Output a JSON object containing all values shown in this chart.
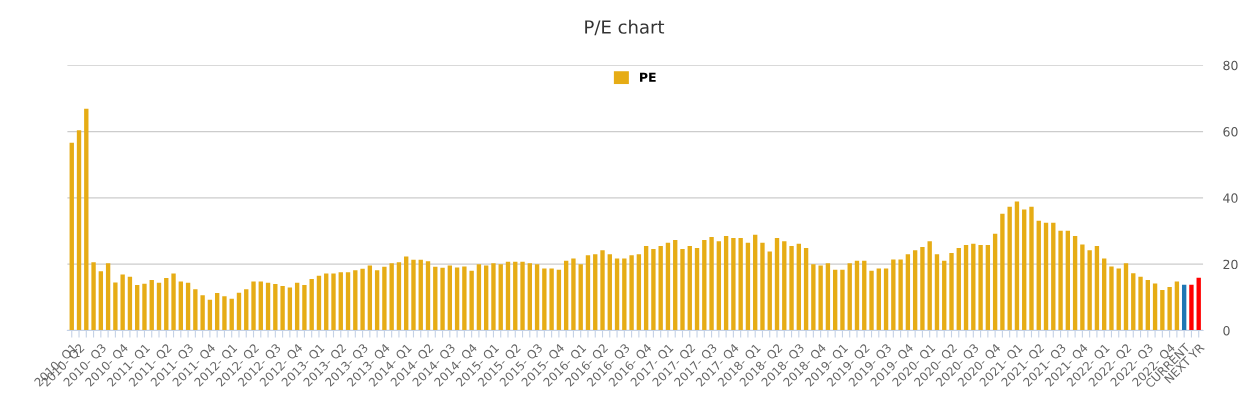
{
  "chart_data": {
    "type": "bar",
    "title": "P/E chart",
    "categories": [
      "2010- Q1",
      "2010- Q2",
      null,
      null,
      "2010- Q3",
      null,
      null,
      "2010- Q4",
      null,
      null,
      "2011- Q1",
      null,
      null,
      "2011- Q2",
      null,
      null,
      "2011- Q3",
      null,
      null,
      "2011- Q4",
      null,
      null,
      "2012- Q1",
      null,
      null,
      "2012- Q2",
      null,
      null,
      "2012- Q3",
      null,
      null,
      "2012- Q4",
      null,
      null,
      "2013- Q1",
      null,
      null,
      "2013- Q2",
      null,
      null,
      "2013- Q3",
      null,
      null,
      "2013- Q4",
      null,
      null,
      "2014- Q1",
      null,
      null,
      "2014- Q2",
      null,
      null,
      "2014- Q3",
      null,
      null,
      "2014- Q4",
      null,
      null,
      "2015- Q1",
      null,
      null,
      "2015- Q2",
      null,
      null,
      "2015- Q3",
      null,
      null,
      "2015- Q4",
      null,
      null,
      "2016- Q1",
      null,
      null,
      "2016- Q2",
      null,
      null,
      "2016- Q3",
      null,
      null,
      "2016- Q4",
      null,
      null,
      "2017- Q1",
      null,
      null,
      "2017- Q2",
      null,
      null,
      "2017- Q3",
      null,
      null,
      "2017- Q4",
      null,
      null,
      "2018- Q1",
      null,
      null,
      "2018- Q2",
      null,
      null,
      "2018- Q3",
      null,
      null,
      "2018- Q4",
      null,
      null,
      "2019- Q1",
      null,
      null,
      "2019- Q2",
      null,
      null,
      "2019- Q3",
      null,
      null,
      "2019- Q4",
      null,
      null,
      "2020- Q1",
      null,
      null,
      "2020- Q2",
      null,
      null,
      "2020- Q3",
      null,
      null,
      "2020- Q4",
      null,
      null,
      "2021- Q1",
      null,
      null,
      "2021- Q2",
      null,
      null,
      "2021- Q3",
      null,
      null,
      "2021- Q4",
      null,
      null,
      "2022- Q1",
      null,
      null,
      "2022- Q2",
      null,
      null,
      "2022- Q3",
      null,
      null,
      "2022- Q4",
      null,
      "CURRENT",
      null,
      "NEXT YR"
    ],
    "series": [
      {
        "name": "PE",
        "color": "#e6ac15",
        "values": [
          56.6,
          60.4,
          66.9,
          20.6,
          17.9,
          20.3,
          14.5,
          16.9,
          16.2,
          13.7,
          14.1,
          15.2,
          14.4,
          15.8,
          17.2,
          14.8,
          14.4,
          12.4,
          10.6,
          9.3,
          11.3,
          10.3,
          9.6,
          11.4,
          12.4,
          14.8,
          14.8,
          14.4,
          14.0,
          13.4,
          13.0,
          14.4,
          13.7,
          15.5,
          16.5,
          17.2,
          17.2,
          17.6,
          17.6,
          18.2,
          18.6,
          19.6,
          18.2,
          19.2,
          20.3,
          20.6,
          22.3,
          21.3,
          21.3,
          20.9,
          19.2,
          18.9,
          19.6,
          19.0,
          19.3,
          18.0,
          20.0,
          19.6,
          20.3,
          20.0,
          20.7,
          20.7,
          20.7,
          20.3,
          20.0,
          18.7,
          18.7,
          18.3,
          21.0,
          21.7,
          20.0,
          22.7,
          23.0,
          24.2,
          23.0,
          21.7,
          21.7,
          22.7,
          23.0,
          25.5,
          24.6,
          25.5,
          26.5,
          27.3,
          24.6,
          25.5,
          24.9,
          27.3,
          28.2,
          26.9,
          28.5,
          27.9,
          27.9,
          26.5,
          28.9,
          26.5,
          23.8,
          27.9,
          26.9,
          25.5,
          26.2,
          24.9,
          20.0,
          19.6,
          20.3,
          18.3,
          18.3,
          20.3,
          21.0,
          21.0,
          18.0,
          18.7,
          18.7,
          21.4,
          21.4,
          23.0,
          24.2,
          25.2,
          26.9,
          23.0,
          21.0,
          23.4,
          24.9,
          25.8,
          26.2,
          25.8,
          25.8,
          29.2,
          35.2,
          37.3,
          38.9,
          36.5,
          37.3,
          33.1,
          32.5,
          32.5,
          30.1,
          30.1,
          28.5,
          25.9,
          24.2,
          25.5,
          21.7,
          19.3,
          18.7,
          20.3,
          17.3,
          16.2,
          15.2,
          14.2,
          12.2,
          13.1,
          14.8,
          13.8,
          13.8,
          15.9
        ],
        "colors": [
          "#e6ac15",
          "#e6ac15",
          "#e6ac15",
          "#e6ac15",
          "#e6ac15",
          "#e6ac15",
          "#e6ac15",
          "#e6ac15",
          "#e6ac15",
          "#e6ac15",
          "#e6ac15",
          "#e6ac15",
          "#e6ac15",
          "#e6ac15",
          "#e6ac15",
          "#e6ac15",
          "#e6ac15",
          "#e6ac15",
          "#e6ac15",
          "#e6ac15",
          "#e6ac15",
          "#e6ac15",
          "#e6ac15",
          "#e6ac15",
          "#e6ac15",
          "#e6ac15",
          "#e6ac15",
          "#e6ac15",
          "#e6ac15",
          "#e6ac15",
          "#e6ac15",
          "#e6ac15",
          "#e6ac15",
          "#e6ac15",
          "#e6ac15",
          "#e6ac15",
          "#e6ac15",
          "#e6ac15",
          "#e6ac15",
          "#e6ac15",
          "#e6ac15",
          "#e6ac15",
          "#e6ac15",
          "#e6ac15",
          "#e6ac15",
          "#e6ac15",
          "#e6ac15",
          "#e6ac15",
          "#e6ac15",
          "#e6ac15",
          "#e6ac15",
          "#e6ac15",
          "#e6ac15",
          "#e6ac15",
          "#e6ac15",
          "#e6ac15",
          "#e6ac15",
          "#e6ac15",
          "#e6ac15",
          "#e6ac15",
          "#e6ac15",
          "#e6ac15",
          "#e6ac15",
          "#e6ac15",
          "#e6ac15",
          "#e6ac15",
          "#e6ac15",
          "#e6ac15",
          "#e6ac15",
          "#e6ac15",
          "#e6ac15",
          "#e6ac15",
          "#e6ac15",
          "#e6ac15",
          "#e6ac15",
          "#e6ac15",
          "#e6ac15",
          "#e6ac15",
          "#e6ac15",
          "#e6ac15",
          "#e6ac15",
          "#e6ac15",
          "#e6ac15",
          "#e6ac15",
          "#e6ac15",
          "#e6ac15",
          "#e6ac15",
          "#e6ac15",
          "#e6ac15",
          "#e6ac15",
          "#e6ac15",
          "#e6ac15",
          "#e6ac15",
          "#e6ac15",
          "#e6ac15",
          "#e6ac15",
          "#e6ac15",
          "#e6ac15",
          "#e6ac15",
          "#e6ac15",
          "#e6ac15",
          "#e6ac15",
          "#e6ac15",
          "#e6ac15",
          "#e6ac15",
          "#e6ac15",
          "#e6ac15",
          "#e6ac15",
          "#e6ac15",
          "#e6ac15",
          "#e6ac15",
          "#e6ac15",
          "#e6ac15",
          "#e6ac15",
          "#e6ac15",
          "#e6ac15",
          "#e6ac15",
          "#e6ac15",
          "#e6ac15",
          "#e6ac15",
          "#e6ac15",
          "#e6ac15",
          "#e6ac15",
          "#e6ac15",
          "#e6ac15",
          "#e6ac15",
          "#e6ac15",
          "#e6ac15",
          "#e6ac15",
          "#e6ac15",
          "#e6ac15",
          "#e6ac15",
          "#e6ac15",
          "#e6ac15",
          "#e6ac15",
          "#e6ac15",
          "#e6ac15",
          "#e6ac15",
          "#e6ac15",
          "#e6ac15",
          "#e6ac15",
          "#e6ac15",
          "#e6ac15",
          "#e6ac15",
          "#e6ac15",
          "#e6ac15",
          "#e6ac15",
          "#e6ac15",
          "#e6ac15",
          "#e6ac15",
          "#e6ac15",
          "#e6ac15",
          "#e6ac15",
          "#1f77b4",
          "#ff0000",
          "#ff0000"
        ]
      }
    ],
    "ylim": [
      0,
      80
    ],
    "yticks": [
      0,
      20,
      40,
      60,
      80
    ],
    "grid": "y",
    "legend": "top"
  }
}
